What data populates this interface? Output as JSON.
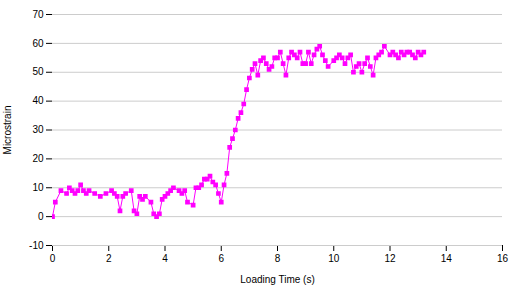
{
  "chart_data": {
    "type": "line",
    "xlabel": "Loading Time (s)",
    "ylabel": "Microstrain",
    "x": [
      0.0,
      0.1,
      0.3,
      0.5,
      0.6,
      0.7,
      0.8,
      0.9,
      1.0,
      1.1,
      1.2,
      1.3,
      1.5,
      1.7,
      1.9,
      2.1,
      2.2,
      2.3,
      2.4,
      2.5,
      2.6,
      2.8,
      2.9,
      3.0,
      3.1,
      3.2,
      3.3,
      3.5,
      3.6,
      3.7,
      3.8,
      3.9,
      4.0,
      4.1,
      4.2,
      4.3,
      4.5,
      4.6,
      4.7,
      4.8,
      5.0,
      5.1,
      5.2,
      5.3,
      5.4,
      5.5,
      5.6,
      5.7,
      5.8,
      5.9,
      6.0,
      6.1,
      6.2,
      6.3,
      6.4,
      6.5,
      6.6,
      6.7,
      6.8,
      6.9,
      7.0,
      7.1,
      7.2,
      7.3,
      7.4,
      7.5,
      7.6,
      7.7,
      7.8,
      7.9,
      8.0,
      8.1,
      8.2,
      8.3,
      8.4,
      8.5,
      8.6,
      8.7,
      8.8,
      8.9,
      9.0,
      9.1,
      9.2,
      9.3,
      9.4,
      9.5,
      9.6,
      9.7,
      9.8,
      10.0,
      10.1,
      10.2,
      10.3,
      10.4,
      10.5,
      10.6,
      10.7,
      10.8,
      10.9,
      11.0,
      11.1,
      11.2,
      11.3,
      11.4,
      11.5,
      11.6,
      11.7,
      11.8,
      12.0,
      12.1,
      12.2,
      12.3,
      12.4,
      12.5,
      12.6,
      12.7,
      12.8,
      12.9,
      13.0,
      13.1,
      13.2
    ],
    "values": [
      0,
      5,
      9,
      8,
      10,
      9,
      8,
      9,
      11,
      9,
      8,
      9,
      8,
      7,
      8,
      9,
      8,
      7,
      2,
      7,
      8,
      9,
      2,
      1,
      7,
      6,
      7,
      5,
      1,
      0,
      1,
      6,
      7,
      8,
      9,
      10,
      9,
      8,
      9,
      5,
      4,
      10,
      10,
      11,
      13,
      13,
      14,
      12,
      11,
      8,
      5,
      11,
      15,
      24,
      27,
      30,
      34,
      36,
      39,
      44,
      48,
      51,
      53,
      49,
      54,
      55,
      53,
      51,
      52,
      55,
      55,
      57,
      53,
      49,
      55,
      57,
      56,
      55,
      57,
      53,
      53,
      57,
      53,
      56,
      58,
      59,
      56,
      54,
      52,
      54,
      55,
      56,
      55,
      53,
      55,
      56,
      50,
      52,
      53,
      50,
      53,
      55,
      52,
      49,
      55,
      56,
      57,
      59,
      56,
      57,
      56,
      55,
      57,
      56,
      57,
      57,
      56,
      55,
      57,
      56,
      57
    ],
    "color": "#FF00FF",
    "marker": "square",
    "xlim": [
      0,
      16
    ],
    "ylim": [
      -10,
      70
    ],
    "xticks": [
      0,
      2,
      4,
      6,
      8,
      10,
      12,
      14,
      16
    ],
    "yticks": [
      -10,
      0,
      10,
      20,
      30,
      40,
      50,
      60,
      70
    ],
    "grid": "y"
  }
}
